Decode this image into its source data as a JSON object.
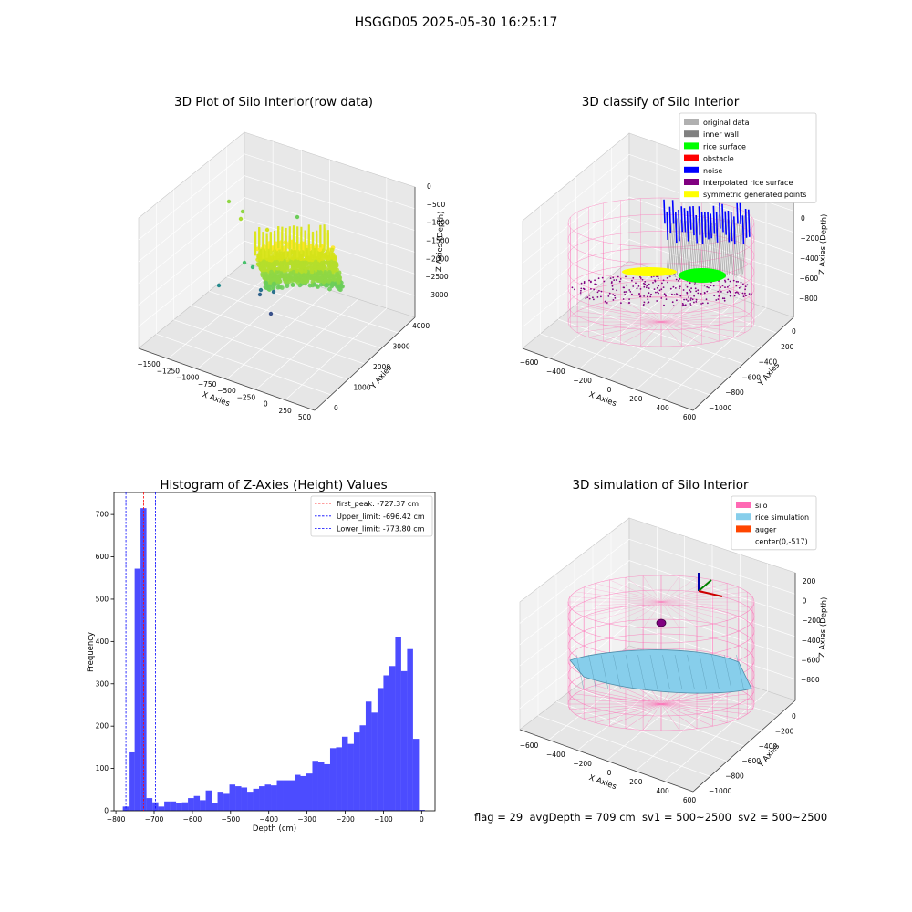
{
  "suptitle": "HSGGD05 2025-05-30 16:25:17",
  "footer": "flag = 29  avgDepth = 709 cm  sv1 = 500~2500  sv2 = 500~2500",
  "colors": {
    "pane": "#f2f2f2",
    "grid": "#d0d0d0",
    "silo": "#ff69b4",
    "rice_sim": "#87ceeb",
    "auger": "#ff4500",
    "hist": "#0000ff",
    "peak": "#ff0000",
    "limit": "#0000ff"
  },
  "chart_data": [
    {
      "type": "scatter",
      "title": "3D Plot of Silo Interior(row data)",
      "xlabel": "X Axies",
      "ylabel": "Y Axies",
      "zlabel": "Z Axies (Depth)",
      "xticks": [
        "−1500",
        "−1250",
        "−1000",
        "−750",
        "−500",
        "−250",
        "0",
        "250",
        "500"
      ],
      "yticks": [
        "0",
        "1000",
        "2000",
        "3000",
        "4000"
      ],
      "zticks": [
        "0",
        "−500",
        "−1000",
        "−1500",
        "−2000",
        "−2500",
        "−3000"
      ],
      "colormap": "viridis"
    },
    {
      "type": "scatter",
      "title": "3D classify of Silo Interior",
      "xlabel": "X Axies",
      "ylabel": "Y Axies",
      "zlabel": "Z Axies (Depth)",
      "xticks": [
        "−600",
        "−400",
        "−200",
        "0",
        "200",
        "400",
        "600"
      ],
      "yticks": [
        "0",
        "−200",
        "−400",
        "−600",
        "−800",
        "−1000"
      ],
      "zticks": [
        "0",
        "−200",
        "−400",
        "−600",
        "−800"
      ],
      "legend": [
        {
          "label": "original data",
          "color": "#b0b0b0"
        },
        {
          "label": "inner wall",
          "color": "#808080"
        },
        {
          "label": "rice surface",
          "color": "#00ff00"
        },
        {
          "label": "obstacle",
          "color": "#ff0000"
        },
        {
          "label": "noise",
          "color": "#0000ff"
        },
        {
          "label": "interpolated rice surface",
          "color": "#800080"
        },
        {
          "label": "symmetric generated points",
          "color": "#ffff00"
        }
      ]
    },
    {
      "type": "bar",
      "title": "Histogram of Z-Axies (Height) Values",
      "xlabel": "Depth (cm)",
      "ylabel": "Frequency",
      "xlim": [
        -805,
        35
      ],
      "ylim": [
        0,
        752
      ],
      "xticks": [
        -800,
        -700,
        -600,
        -500,
        -400,
        -300,
        -200,
        -100,
        0
      ],
      "yticks": [
        0,
        100,
        200,
        300,
        400,
        500,
        600,
        700
      ],
      "bin_width": 15.5,
      "bins_start": [
        -782,
        -766.5,
        -751,
        -735.5,
        -720,
        -704.5,
        -689,
        -673.5,
        -658,
        -642.5,
        -627,
        -611.5,
        -596,
        -580.5,
        -565,
        -549.5,
        -534,
        -518.5,
        -503,
        -487.5,
        -472,
        -456.5,
        -441,
        -425.5,
        -410,
        -394.5,
        -379,
        -363.5,
        -348,
        -332.5,
        -317,
        -301.5,
        -286,
        -270.5,
        -255,
        -239.5,
        -224,
        -208.5,
        -193,
        -177.5,
        -162,
        -146.5,
        -131,
        -115.5,
        -100,
        -84.5,
        -69,
        -53.5,
        -38,
        -22.5,
        -7
      ],
      "frequencies": [
        10,
        138,
        572,
        715,
        30,
        20,
        10,
        22,
        22,
        18,
        20,
        30,
        35,
        25,
        48,
        18,
        45,
        40,
        62,
        58,
        55,
        45,
        52,
        58,
        62,
        60,
        72,
        72,
        72,
        85,
        82,
        88,
        118,
        115,
        110,
        148,
        150,
        175,
        158,
        185,
        202,
        258,
        232,
        290,
        320,
        342,
        410,
        330,
        382,
        170,
        2
      ],
      "vlines": [
        {
          "label": "first_peak: -727.37 cm",
          "x": -727.37,
          "color": "#ff0000"
        },
        {
          "label": "Upper_limit: -696.42 cm",
          "x": -696.42,
          "color": "#0000ff"
        },
        {
          "label": "Lower_limit: -773.80 cm",
          "x": -773.8,
          "color": "#0000ff"
        }
      ]
    },
    {
      "type": "scatter",
      "title": "3D simulation of Silo Interior",
      "xlabel": "X Axies",
      "ylabel": "Y Axies",
      "zlabel": "Z Axies (Depth)",
      "xticks": [
        "−600",
        "−400",
        "−200",
        "0",
        "200",
        "400",
        "600"
      ],
      "yticks": [
        "0",
        "−200",
        "−400",
        "−600",
        "−800",
        "−1000"
      ],
      "zticks": [
        "200",
        "0",
        "−200",
        "−400",
        "−600",
        "−800"
      ],
      "legend": [
        {
          "label": "silo",
          "color": "#ff69b4"
        },
        {
          "label": "rice simulation",
          "color": "#87ceeb"
        },
        {
          "label": "auger",
          "color": "#ff4500"
        },
        {
          "label": "center(0,-517)",
          "color": ""
        }
      ]
    }
  ]
}
